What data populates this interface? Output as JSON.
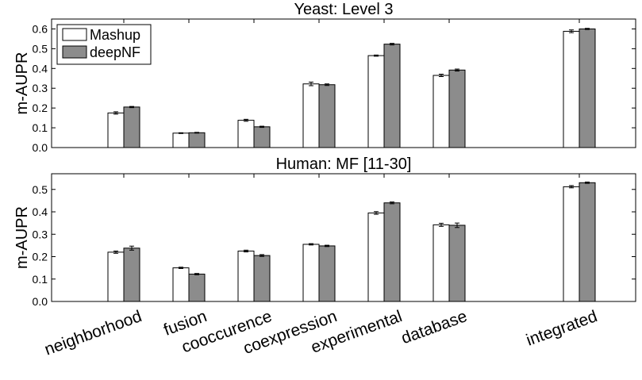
{
  "colors": {
    "mashup_fill": "#ffffff",
    "deepnf_fill": "#8c8c8c",
    "bar_stroke": "#000000",
    "axis": "#000000",
    "integrated_label": "#8b1a1a",
    "default_label": "#000000"
  },
  "chart_data": [
    {
      "type": "bar",
      "title": "Yeast: Level 3",
      "xlabel": "",
      "ylabel": "m-AUPR",
      "ylim": [
        0,
        0.65
      ],
      "yticks": [
        0,
        0.1,
        0.2,
        0.3,
        0.4,
        0.5,
        0.6
      ],
      "ytick_labels": [
        "0.0",
        "0.1",
        "0.2",
        "0.3",
        "0.4",
        "0.5",
        "0.6"
      ],
      "grid": false,
      "legend_position": "top-left",
      "categories": [
        "neighborhood",
        "fusion",
        "cooccurence",
        "coexpression",
        "experimental",
        "database",
        "integrated"
      ],
      "series": [
        {
          "name": "Mashup",
          "values": [
            0.175,
            0.073,
            0.138,
            0.322,
            0.465,
            0.365,
            0.588
          ],
          "errors": [
            0.006,
            0.002,
            0.005,
            0.009,
            0.003,
            0.006,
            0.007
          ]
        },
        {
          "name": "deepNF",
          "values": [
            0.205,
            0.075,
            0.105,
            0.318,
            0.523,
            0.392,
            0.6
          ],
          "errors": [
            0.003,
            0.002,
            0.003,
            0.004,
            0.004,
            0.005,
            0.003
          ]
        }
      ]
    },
    {
      "type": "bar",
      "title": "Human: MF [11-30]",
      "xlabel": "",
      "ylabel": "m-AUPR",
      "ylim": [
        0,
        0.57
      ],
      "yticks": [
        0,
        0.1,
        0.2,
        0.3,
        0.4,
        0.5
      ],
      "ytick_labels": [
        "0.0",
        "0.1",
        "0.2",
        "0.3",
        "0.4",
        "0.5"
      ],
      "grid": false,
      "categories": [
        "neighborhood",
        "fusion",
        "cooccurence",
        "coexpression",
        "experimental",
        "database",
        "integrated"
      ],
      "category_labels": [
        "neighborhood",
        "fusion",
        "cooccurence",
        "coexpression",
        "experimental",
        "database",
        "integrated"
      ],
      "series": [
        {
          "name": "Mashup",
          "values": [
            0.22,
            0.15,
            0.225,
            0.255,
            0.395,
            0.342,
            0.512
          ],
          "errors": [
            0.005,
            0.003,
            0.004,
            0.003,
            0.006,
            0.007,
            0.005
          ]
        },
        {
          "name": "deepNF",
          "values": [
            0.238,
            0.122,
            0.205,
            0.248,
            0.44,
            0.34,
            0.53
          ],
          "errors": [
            0.009,
            0.003,
            0.004,
            0.003,
            0.004,
            0.01,
            0.003
          ]
        }
      ]
    }
  ]
}
